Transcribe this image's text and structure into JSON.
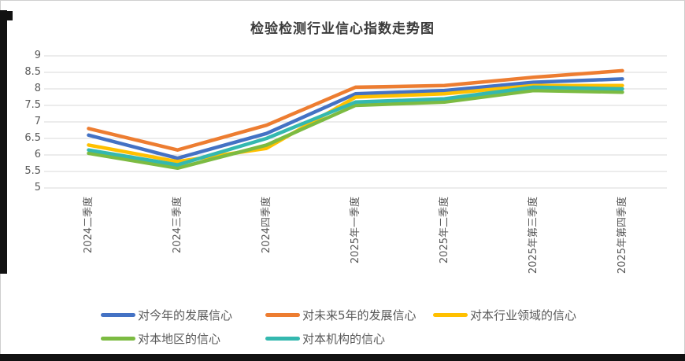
{
  "title": "检验检测行业信心指数走势图",
  "chart_data": {
    "type": "line",
    "title": "检验检测行业信心指数走势图",
    "categories": [
      "2024二季度",
      "2024三季度",
      "2024四季度",
      "2025年一季度",
      "2025年二季度",
      "2025年第三季度",
      "2025年第四季度"
    ],
    "series": [
      {
        "name": "对今年的发展信心",
        "color": "#4472C4",
        "values": [
          6.6,
          5.9,
          6.65,
          7.85,
          7.95,
          8.2,
          8.3
        ]
      },
      {
        "name": "对未来5年的发展信心",
        "color": "#ED7D31",
        "values": [
          6.8,
          6.15,
          6.9,
          8.05,
          8.1,
          8.35,
          8.55
        ]
      },
      {
        "name": "对本行业领域的信心",
        "color": "#FFC000",
        "values": [
          6.3,
          5.8,
          6.2,
          7.75,
          7.85,
          8.1,
          8.1
        ]
      },
      {
        "name": "对本地区的信心",
        "color": "#7CBB42",
        "values": [
          6.05,
          5.6,
          6.3,
          7.5,
          7.6,
          7.95,
          7.9
        ]
      },
      {
        "name": "对本机构的信心",
        "color": "#34B8AF",
        "values": [
          6.15,
          5.7,
          6.5,
          7.6,
          7.7,
          8.05,
          8.0
        ]
      }
    ],
    "xlabel": "",
    "ylabel": "",
    "ylim": [
      5,
      9
    ],
    "yticks": [
      5,
      5.5,
      6,
      6.5,
      7,
      7.5,
      8,
      8.5,
      9
    ],
    "grid": true,
    "legend_position": "bottom",
    "gridline_color": "#d9d9d9",
    "axis_label_color": "#595959",
    "line_width": 4.5
  }
}
